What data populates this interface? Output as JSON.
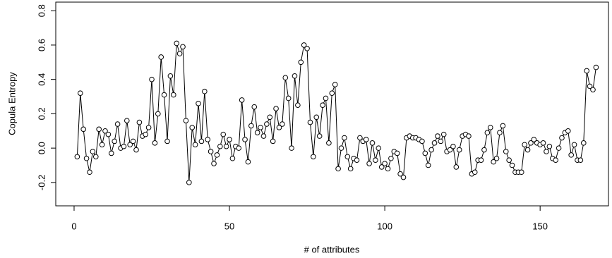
{
  "chart_data": {
    "type": "line",
    "xlabel": "# of attributes",
    "ylabel": "Copula Entropy",
    "x": [
      1,
      2,
      3,
      4,
      5,
      6,
      7,
      8,
      9,
      10,
      11,
      12,
      13,
      14,
      15,
      16,
      17,
      18,
      19,
      20,
      21,
      22,
      23,
      24,
      25,
      26,
      27,
      28,
      29,
      30,
      31,
      32,
      33,
      34,
      35,
      36,
      37,
      38,
      39,
      40,
      41,
      42,
      43,
      44,
      45,
      46,
      47,
      48,
      49,
      50,
      51,
      52,
      53,
      54,
      55,
      56,
      57,
      58,
      59,
      60,
      61,
      62,
      63,
      64,
      65,
      66,
      67,
      68,
      69,
      70,
      71,
      72,
      73,
      74,
      75,
      76,
      77,
      78,
      79,
      80,
      81,
      82,
      83,
      84,
      85,
      86,
      87,
      88,
      89,
      90,
      91,
      92,
      93,
      94,
      95,
      96,
      97,
      98,
      99,
      100,
      101,
      102,
      103,
      104,
      105,
      106,
      107,
      108,
      109,
      110,
      111,
      112,
      113,
      114,
      115,
      116,
      117,
      118,
      119,
      120,
      121,
      122,
      123,
      124,
      125,
      126,
      127,
      128,
      129,
      130,
      131,
      132,
      133,
      134,
      135,
      136,
      137,
      138,
      139,
      140,
      141,
      142,
      143,
      144,
      145,
      146,
      147,
      148,
      149,
      150,
      151,
      152,
      153,
      154,
      155,
      156,
      157,
      158,
      159,
      160,
      161,
      162,
      163,
      164,
      165,
      166,
      167,
      168
    ],
    "series": [
      {
        "color": "#000000",
        "values": [
          -0.05,
          0.32,
          0.11,
          -0.06,
          -0.14,
          -0.02,
          -0.05,
          0.11,
          0.02,
          0.1,
          0.08,
          -0.03,
          0.04,
          0.14,
          0.0,
          0.01,
          0.16,
          0.02,
          0.04,
          -0.01,
          0.15,
          0.07,
          0.08,
          0.12,
          0.4,
          0.03,
          0.2,
          0.53,
          0.31,
          0.04,
          0.42,
          0.31,
          0.61,
          0.55,
          0.59,
          0.16,
          -0.2,
          0.12,
          0.02,
          0.26,
          0.04,
          0.33,
          0.05,
          -0.02,
          -0.09,
          -0.04,
          0.01,
          0.08,
          0.01,
          0.05,
          -0.06,
          0.01,
          0.0,
          0.28,
          0.05,
          -0.08,
          0.13,
          0.24,
          0.09,
          0.12,
          0.07,
          0.14,
          0.18,
          0.04,
          0.23,
          0.12,
          0.14,
          0.41,
          0.29,
          0.0,
          0.42,
          0.25,
          0.5,
          0.6,
          0.58,
          0.15,
          -0.05,
          0.18,
          0.07,
          0.25,
          0.29,
          0.03,
          0.32,
          0.37,
          -0.12,
          0.0,
          0.06,
          -0.05,
          -0.12,
          -0.06,
          -0.07,
          0.06,
          0.04,
          0.05,
          -0.09,
          0.03,
          -0.07,
          0.0,
          -0.11,
          -0.09,
          -0.12,
          -0.06,
          -0.02,
          -0.03,
          -0.15,
          -0.17,
          0.06,
          0.07,
          0.06,
          0.06,
          0.05,
          0.04,
          -0.03,
          -0.1,
          -0.01,
          0.03,
          0.07,
          0.04,
          0.08,
          -0.02,
          -0.01,
          0.01,
          -0.11,
          -0.01,
          0.07,
          0.08,
          0.07,
          -0.15,
          -0.14,
          -0.07,
          -0.07,
          -0.01,
          0.09,
          0.12,
          -0.08,
          -0.06,
          0.09,
          0.13,
          -0.02,
          -0.07,
          -0.1,
          -0.14,
          -0.14,
          -0.14,
          0.02,
          -0.01,
          0.03,
          0.05,
          0.03,
          0.02,
          0.03,
          -0.02,
          0.01,
          -0.06,
          -0.07,
          0.0,
          0.06,
          0.09,
          0.1,
          -0.04,
          0.02,
          -0.07,
          -0.07,
          0.03,
          0.45,
          0.36,
          0.34,
          0.47
        ]
      }
    ],
    "xlim": [
      -5.9,
      172
    ],
    "ylim": [
      -0.336,
      0.85
    ],
    "xticks": [
      0,
      50,
      100,
      150
    ],
    "yticks": [
      -0.2,
      {
        "value": 0,
        "label": "0.0"
      },
      0.2,
      0.4,
      0.6,
      0.8
    ]
  }
}
